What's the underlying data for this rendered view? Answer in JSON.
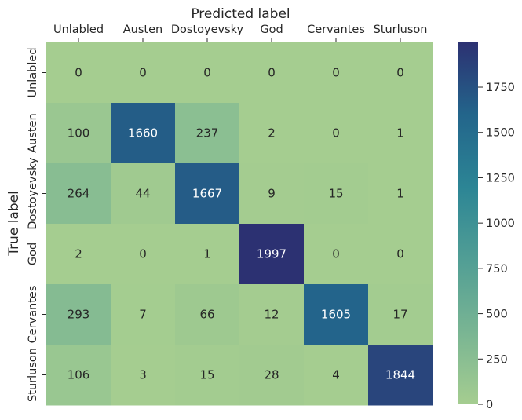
{
  "chart_data": {
    "type": "heatmap",
    "title": "",
    "xlabel": "Predicted label",
    "ylabel": "True label",
    "x_categories": [
      "Unlabled",
      "Austen",
      "Dostoyevsky",
      "God",
      "Cervantes",
      "Sturluson"
    ],
    "y_categories": [
      "Unlabled",
      "Austen",
      "Dostoyevsky",
      "God",
      "Cervantes",
      "Sturluson"
    ],
    "values": [
      [
        0,
        0,
        0,
        0,
        0,
        0
      ],
      [
        100,
        1660,
        237,
        2,
        0,
        1
      ],
      [
        264,
        44,
        1667,
        9,
        15,
        1
      ],
      [
        2,
        0,
        1,
        1997,
        0,
        0
      ],
      [
        293,
        7,
        66,
        12,
        1605,
        17
      ],
      [
        106,
        3,
        15,
        28,
        4,
        1844
      ]
    ],
    "colorbar": {
      "range": [
        0,
        1997
      ],
      "ticks": [
        0,
        250,
        500,
        750,
        1000,
        1250,
        1500,
        1750
      ]
    },
    "colormap": "crest",
    "x_axis_position": "top",
    "grid": false
  }
}
